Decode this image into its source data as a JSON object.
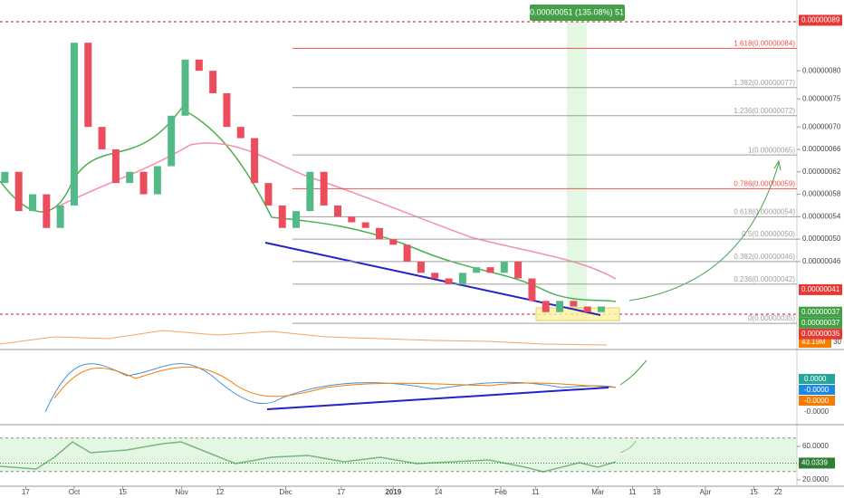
{
  "chart_data": {
    "type": "candlestick",
    "x": [
      10,
      14,
      18,
      22,
      26,
      30,
      34,
      38,
      42,
      46,
      50,
      54,
      58,
      62,
      66,
      70,
      74,
      78,
      82,
      86,
      90,
      94,
      98,
      102,
      106,
      110,
      114,
      118,
      122,
      126,
      130,
      134,
      138,
      142,
      146,
      150,
      154,
      158,
      162,
      166,
      170,
      174,
      178,
      182
    ],
    "open": [
      6e-07,
      6.2e-07,
      5.5e-07,
      5.8e-07,
      5.2e-07,
      5.6e-07,
      8.5e-07,
      7e-07,
      6.6e-07,
      6e-07,
      6.2e-07,
      5.8e-07,
      6.3e-07,
      7.2e-07,
      8.2e-07,
      8e-07,
      7.6e-07,
      7e-07,
      6.8e-07,
      6e-07,
      5.6e-07,
      5.2e-07,
      5.5e-07,
      6.2e-07,
      5.6e-07,
      5.4e-07,
      5.3e-07,
      5.2e-07,
      5e-07,
      4.9e-07,
      4.6e-07,
      4.4e-07,
      4.3e-07,
      4.2e-07,
      4.4e-07,
      4.5e-07,
      4.4e-07,
      4.6e-07,
      4.3e-07,
      3.9e-07,
      3.7e-07,
      3.9e-07,
      3.8e-07,
      3.7e-07
    ],
    "close": [
      6.2e-07,
      5.5e-07,
      5.8e-07,
      5.2e-07,
      5.6e-07,
      8.5e-07,
      7e-07,
      6.6e-07,
      6e-07,
      6.2e-07,
      5.8e-07,
      6.3e-07,
      7.2e-07,
      8.2e-07,
      8e-07,
      7.6e-07,
      7e-07,
      6.8e-07,
      6e-07,
      5.6e-07,
      5.2e-07,
      5.5e-07,
      6.2e-07,
      5.6e-07,
      5.4e-07,
      5.3e-07,
      5.2e-07,
      5e-07,
      4.9e-07,
      4.6e-07,
      4.4e-07,
      4.3e-07,
      4.2e-07,
      4.4e-07,
      4.5e-07,
      4.4e-07,
      4.6e-07,
      4.3e-07,
      3.9e-07,
      3.7e-07,
      3.9e-07,
      3.8e-07,
      3.7e-07,
      3.8e-07
    ],
    "up_color": "#53b987",
    "down_color": "#eb4d5c",
    "xlim": [
      8.6,
      238.4
    ],
    "xticks": [
      {
        "value": 16,
        "label": "17"
      },
      {
        "value": 30,
        "label": "Oct"
      },
      {
        "value": 44,
        "label": "15"
      },
      {
        "value": 61,
        "label": "Nov"
      },
      {
        "value": 72,
        "label": "12"
      },
      {
        "value": 91,
        "label": "Dec"
      },
      {
        "value": 107,
        "label": "17"
      },
      {
        "value": 122,
        "label": "2019"
      },
      {
        "value": 135,
        "label": "14"
      },
      {
        "value": 153,
        "label": "Feb"
      },
      {
        "value": 163,
        "label": "11"
      },
      {
        "value": 181,
        "label": "Mar"
      },
      {
        "value": 191,
        "label": "11"
      },
      {
        "value": 198,
        "label": "18"
      },
      {
        "value": 212,
        "label": "Apr"
      },
      {
        "value": 226,
        "label": "15"
      },
      {
        "value": 233,
        "label": "22"
      }
    ],
    "ylim": [
      3.05e-07,
      9.1e-07
    ],
    "yticks": [
      {
        "value": 8e-07,
        "label": "0.00000080"
      },
      {
        "value": 7.5e-07,
        "label": "0.00000075"
      },
      {
        "value": 7e-07,
        "label": "0.00000070"
      },
      {
        "value": 6.6e-07,
        "label": "0.00000066"
      },
      {
        "value": 6.2e-07,
        "label": "0.00000062"
      },
      {
        "value": 5.8e-07,
        "label": "0.00000058"
      },
      {
        "value": 5.4e-07,
        "label": "0.00000054"
      },
      {
        "value": 5e-07,
        "label": "0.00000050"
      },
      {
        "value": 4.6e-07,
        "label": "0.00000046"
      }
    ],
    "fib_levels": [
      {
        "value": 8.4e-07,
        "label": "1.618(0.00000084)",
        "color": "#ef5350"
      },
      {
        "value": 7.7e-07,
        "label": "1.382(0.00000077)",
        "color": "#9e9e9e"
      },
      {
        "value": 7.2e-07,
        "label": "1.236(0.00000072)",
        "color": "#9e9e9e"
      },
      {
        "value": 6.5e-07,
        "label": "1(0.00000065)",
        "color": "#9e9e9e"
      },
      {
        "value": 5.9e-07,
        "label": "0.786(0.00000059)",
        "color": "#ef5350"
      },
      {
        "value": 5.4e-07,
        "label": "0.618(0.00000054)",
        "color": "#9e9e9e"
      },
      {
        "value": 5e-07,
        "label": "0.5(0.00000050)",
        "color": "#9e9e9e"
      },
      {
        "value": 4.6e-07,
        "label": "0.382(0.00000046)",
        "color": "#9e9e9e"
      },
      {
        "value": 4.2e-07,
        "label": "0.236(0.00000042)",
        "color": "#9e9e9e"
      },
      {
        "value": 3.5e-07,
        "label": "0(0.00000035)",
        "color": "#9e9e9e"
      }
    ],
    "price_badges": [
      {
        "value": 8.9e-07,
        "label": "0.00000089",
        "color": "#e53935"
      },
      {
        "value": 4.1e-07,
        "label": "0.00000041",
        "color": "#e53935"
      },
      {
        "value": 3.7e-07,
        "label": "0.00000037",
        "color": "#43a047"
      },
      {
        "value": 3.7e-07,
        "label": "0.00000037",
        "color": "#43a047"
      },
      {
        "value": 3.5e-07,
        "label": "0.00000035",
        "color": "#e53935"
      }
    ],
    "measure_label": "0.00000051 (135.08%) 51",
    "volume_label": "43.19M",
    "volume_tick": 30,
    "macd_labels": [
      "0.0000",
      "-0.0000",
      "-0.0000",
      "-0.0000"
    ],
    "rsi": {
      "ylim": [
        12.4,
        83.8
      ],
      "yticks": [
        {
          "value": 60,
          "label": "60.0000"
        },
        {
          "value": 20,
          "label": "20.0000"
        }
      ],
      "bands": [
        70,
        30
      ],
      "value": 40.0339,
      "value_label": "40.0339"
    }
  }
}
